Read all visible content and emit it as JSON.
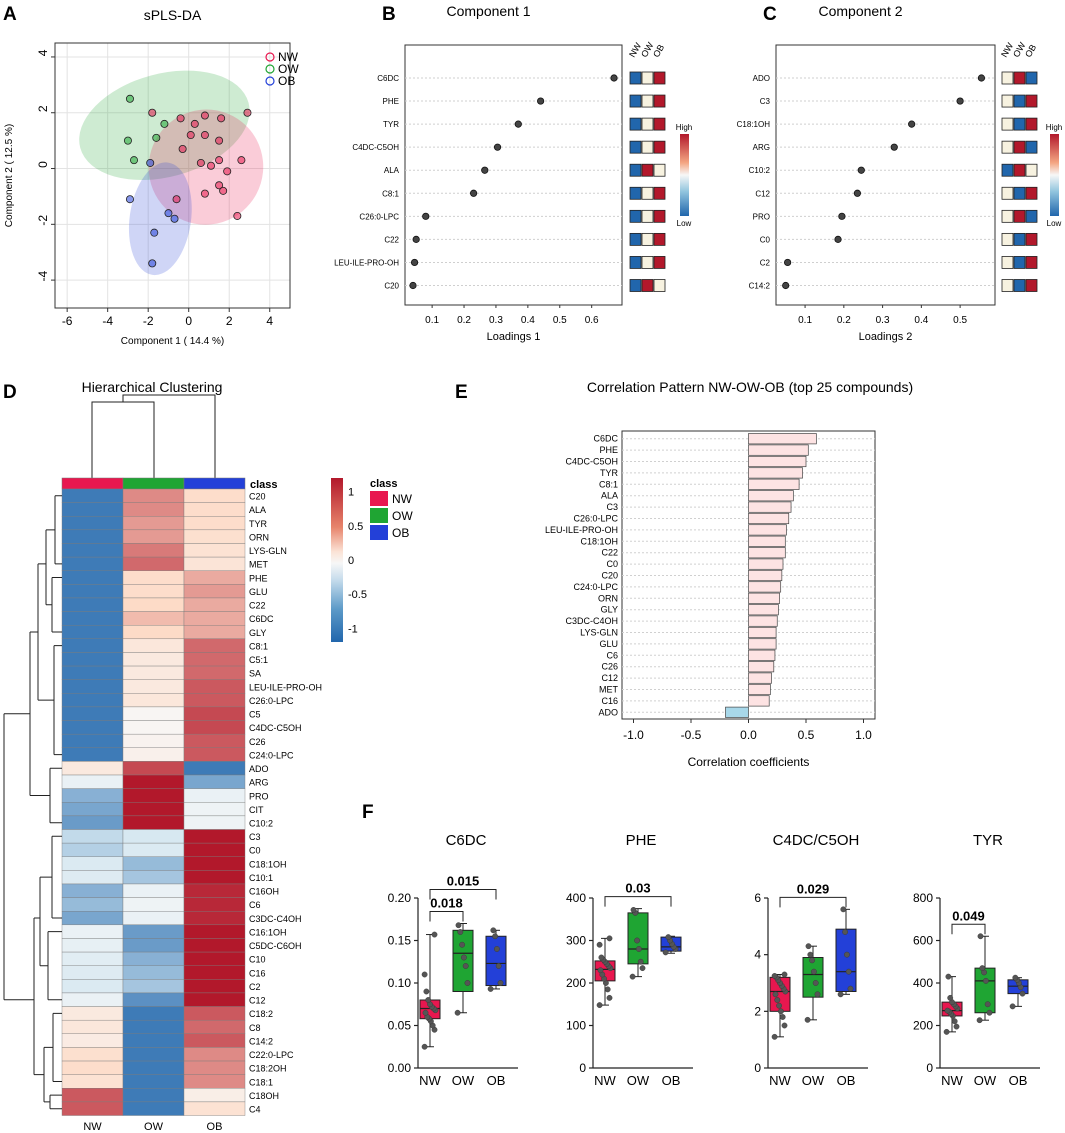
{
  "panel_letters": {
    "A": "A",
    "B": "B",
    "C": "C",
    "D": "D",
    "E": "E",
    "F": "F"
  },
  "colors": {
    "NW": "#e8174f",
    "OW": "#1fa533",
    "OB": "#2340d8",
    "high": "#b2182b",
    "low": "#2166ac",
    "mid": "#f7f2e0"
  },
  "chart_data": [
    {
      "id": "A",
      "type": "scatter",
      "title": "sPLS-DA",
      "xlabel": "Component 1 ( 14.4 %)",
      "ylabel": "Component 2 ( 12.5 %)",
      "xlim": [
        -6.6,
        5
      ],
      "ylim": [
        -5,
        4.5
      ],
      "xticks": [
        -6,
        -4,
        -2,
        0,
        2,
        4
      ],
      "yticks": [
        -4,
        -2,
        0,
        2,
        4
      ],
      "legend": [
        "NW",
        "OW",
        "OB"
      ],
      "series": [
        {
          "name": "NW",
          "points": [
            [
              -1.8,
              2
            ],
            [
              -0.4,
              1.8
            ],
            [
              0.3,
              1.6
            ],
            [
              0.8,
              1.9
            ],
            [
              1.6,
              1.8
            ],
            [
              2.9,
              2
            ],
            [
              0.1,
              1.2
            ],
            [
              0.8,
              1.2
            ],
            [
              1.5,
              1
            ],
            [
              -0.3,
              0.7
            ],
            [
              0.6,
              0.2
            ],
            [
              1.1,
              0.1
            ],
            [
              1.5,
              0.3
            ],
            [
              1.9,
              -0.1
            ],
            [
              2.6,
              0.3
            ],
            [
              1.5,
              -0.6
            ],
            [
              1.7,
              -0.8
            ],
            [
              0.8,
              -0.9
            ],
            [
              -0.6,
              -1.1
            ],
            [
              2.4,
              -1.7
            ]
          ]
        },
        {
          "name": "OW",
          "points": [
            [
              -2.9,
              2.5
            ],
            [
              -1.2,
              1.6
            ],
            [
              -3,
              1
            ],
            [
              -1.6,
              1.1
            ],
            [
              -2.7,
              0.3
            ]
          ]
        },
        {
          "name": "OB",
          "points": [
            [
              -1.9,
              0.2
            ],
            [
              -2.9,
              -1.1
            ],
            [
              -1,
              -1.6
            ],
            [
              -0.7,
              -1.8
            ],
            [
              -1.7,
              -2.3
            ],
            [
              -1.8,
              -3.4
            ]
          ]
        }
      ],
      "ellipses": [
        {
          "name": "OW",
          "cx": -1.2,
          "cy": 1.55,
          "rx": 4.3,
          "ry": 1.85,
          "angle": -15
        },
        {
          "name": "NW",
          "cx": 0.85,
          "cy": 0.05,
          "rx": 2.85,
          "ry": 2.05,
          "angle": -62
        },
        {
          "name": "OB",
          "cx": -1.4,
          "cy": -1.8,
          "rx": 2.8,
          "ry": 1.1,
          "angle": -82
        }
      ]
    },
    {
      "id": "B",
      "type": "scatter",
      "title": "Component 1",
      "xlabel": "Loadings 1",
      "xlim": [
        0.015,
        0.695
      ],
      "xticks": [
        0.1,
        0.2,
        0.3,
        0.4,
        0.5,
        0.6
      ],
      "labels": [
        "C6DC",
        "PHE",
        "TYR",
        "C4DC-C5OH",
        "ALA",
        "C8:1",
        "C26:0-LPC",
        "C22",
        "LEU-ILE-PRO-OH",
        "C20"
      ],
      "values": [
        0.67,
        0.44,
        0.37,
        0.305,
        0.265,
        0.23,
        0.08,
        0.05,
        0.045,
        0.04
      ],
      "group_header": [
        "NW",
        "OW",
        "OB"
      ],
      "groups": [
        [
          "L",
          "M",
          "H"
        ],
        [
          "L",
          "M",
          "H"
        ],
        [
          "L",
          "M",
          "H"
        ],
        [
          "L",
          "M",
          "H"
        ],
        [
          "L",
          "H",
          "M"
        ],
        [
          "L",
          "M",
          "H"
        ],
        [
          "L",
          "M",
          "H"
        ],
        [
          "L",
          "M",
          "H"
        ],
        [
          "L",
          "M",
          "H"
        ],
        [
          "L",
          "H",
          "M"
        ]
      ],
      "scale": {
        "high": "High",
        "low": "Low"
      }
    },
    {
      "id": "C",
      "type": "scatter",
      "title": "Component 2",
      "xlabel": "Loadings 2",
      "xlim": [
        0.025,
        0.59
      ],
      "xticks": [
        0.1,
        0.2,
        0.3,
        0.4,
        0.5
      ],
      "labels": [
        "ADO",
        "C3",
        "C18:1OH",
        "ARG",
        "C10:2",
        "C12",
        "PRO",
        "C0",
        "C2",
        "C14:2"
      ],
      "values": [
        0.555,
        0.5,
        0.375,
        0.33,
        0.245,
        0.235,
        0.195,
        0.185,
        0.055,
        0.05
      ],
      "group_header": [
        "NW",
        "OW",
        "OB"
      ],
      "groups": [
        [
          "M",
          "H",
          "L"
        ],
        [
          "M",
          "L",
          "H"
        ],
        [
          "M",
          "L",
          "H"
        ],
        [
          "M",
          "H",
          "L"
        ],
        [
          "L",
          "H",
          "M"
        ],
        [
          "M",
          "L",
          "H"
        ],
        [
          "M",
          "H",
          "L"
        ],
        [
          "M",
          "L",
          "H"
        ],
        [
          "M",
          "L",
          "H"
        ],
        [
          "M",
          "L",
          "H"
        ]
      ],
      "scale": {
        "high": "High",
        "low": "Low"
      }
    },
    {
      "id": "D",
      "type": "heatmap",
      "title": "Hierarchical Clustering",
      "columns": [
        "NW",
        "OW",
        "OB"
      ],
      "class_label": "class",
      "rows": [
        "C20",
        "ALA",
        "TYR",
        "ORN",
        "LYS-GLN",
        "MET",
        "PHE",
        "GLU",
        "C22",
        "C6DC",
        "GLY",
        "C8:1",
        "C5:1",
        "SA",
        "LEU-ILE-PRO-OH",
        "C26:0-LPC",
        "C5",
        "C4DC-C5OH",
        "C26",
        "C24:0-LPC",
        "ADO",
        "ARG",
        "PRO",
        "CIT",
        "C10:2",
        "C3",
        "C0",
        "C18:1OH",
        "C10:1",
        "C16OH",
        "C6",
        "C3DC-C4OH",
        "C16:1OH",
        "C5DC-C6OH",
        "C10",
        "C16",
        "C2",
        "C12",
        "C18:2",
        "C8",
        "C14:2",
        "C22:0-LPC",
        "C18:2OH",
        "C18:1",
        "C18OH",
        "C4"
      ],
      "values": [
        [
          -1.1,
          0.85,
          0.55
        ],
        [
          -1.1,
          0.85,
          0.55
        ],
        [
          -1.1,
          0.8,
          0.55
        ],
        [
          -1.1,
          0.8,
          0.5
        ],
        [
          -1.1,
          0.9,
          0.45
        ],
        [
          -1.1,
          0.95,
          0.4
        ],
        [
          -1.1,
          0.55,
          0.75
        ],
        [
          -1.1,
          0.55,
          0.8
        ],
        [
          -1.1,
          0.6,
          0.75
        ],
        [
          -1.1,
          0.7,
          0.75
        ],
        [
          -1.1,
          0.6,
          0.75
        ],
        [
          -1.1,
          0.35,
          0.95
        ],
        [
          -1.1,
          0.3,
          0.95
        ],
        [
          -1.1,
          0.3,
          0.95
        ],
        [
          -1.1,
          0.3,
          1.0
        ],
        [
          -1.1,
          0.35,
          1.0
        ],
        [
          -1.1,
          0.05,
          1.05
        ],
        [
          -1.1,
          0.05,
          1.05
        ],
        [
          -1.1,
          0.1,
          1.0
        ],
        [
          -1.1,
          0.15,
          1.0
        ],
        [
          0.3,
          1.05,
          -1.1
        ],
        [
          -0.2,
          1.2,
          -0.9
        ],
        [
          -0.85,
          1.2,
          -0.2
        ],
        [
          -0.9,
          1.2,
          -0.15
        ],
        [
          -0.95,
          1.2,
          -0.15
        ],
        [
          -0.65,
          -0.5,
          1.2
        ],
        [
          -0.7,
          -0.45,
          1.2
        ],
        [
          -0.45,
          -0.8,
          1.2
        ],
        [
          -0.4,
          -0.75,
          1.2
        ],
        [
          -0.85,
          -0.2,
          1.15
        ],
        [
          -0.8,
          -0.15,
          1.15
        ],
        [
          -0.9,
          -0.2,
          1.15
        ],
        [
          -0.2,
          -0.95,
          1.2
        ],
        [
          -0.25,
          -0.95,
          1.2
        ],
        [
          -0.35,
          -0.85,
          1.2
        ],
        [
          -0.4,
          -0.8,
          1.2
        ],
        [
          -0.45,
          -0.75,
          1.25
        ],
        [
          -0.2,
          -1.0,
          1.25
        ],
        [
          0.3,
          -1.1,
          1.0
        ],
        [
          0.35,
          -1.1,
          0.95
        ],
        [
          0.25,
          -1.1,
          1.0
        ],
        [
          0.5,
          -1.1,
          0.85
        ],
        [
          0.55,
          -1.1,
          0.85
        ],
        [
          0.45,
          -1.1,
          0.85
        ],
        [
          1.0,
          -1.1,
          0.2
        ],
        [
          1.0,
          -1.1,
          0.45
        ]
      ],
      "scale_ticks": [
        1,
        0.5,
        0,
        -0.5,
        -1
      ],
      "scale_labels": [
        "1",
        "0.5",
        "0",
        "-0.5",
        "-1"
      ],
      "legend": [
        "NW",
        "OW",
        "OB"
      ]
    },
    {
      "id": "E",
      "type": "bar",
      "title": "Correlation Pattern NW-OW-OB (top 25 compounds)",
      "xlabel": "Correlation coefficients",
      "xlim": [
        -1.1,
        1.1
      ],
      "xticks": [
        -1,
        -0.5,
        0,
        0.5,
        1
      ],
      "xtick_labels": [
        "-1.0",
        "-0.5",
        "0.0",
        "0.5",
        "1.0"
      ],
      "categories": [
        "C6DC",
        "PHE",
        "C4DC-C5OH",
        "TYR",
        "C8:1",
        "ALA",
        "C3",
        "C26:0-LPC",
        "LEU-ILE-PRO-OH",
        "C18:1OH",
        "C22",
        "C0",
        "C20",
        "C24:0-LPC",
        "ORN",
        "GLY",
        "C3DC-C4OH",
        "LYS-GLN",
        "GLU",
        "C6",
        "C26",
        "C12",
        "MET",
        "C16",
        "ADO"
      ],
      "values": [
        0.59,
        0.52,
        0.5,
        0.47,
        0.44,
        0.39,
        0.37,
        0.35,
        0.33,
        0.32,
        0.32,
        0.3,
        0.29,
        0.28,
        0.27,
        0.26,
        0.25,
        0.24,
        0.24,
        0.23,
        0.22,
        0.2,
        0.19,
        0.18,
        -0.2
      ]
    },
    {
      "id": "F",
      "type": "box",
      "groups": [
        "NW",
        "OW",
        "OB"
      ],
      "panels": [
        {
          "title": "C6DC",
          "ylim": [
            0,
            0.2
          ],
          "yticks": [
            0,
            0.05,
            0.1,
            0.15,
            0.2
          ],
          "ytick_labels": [
            "0.00",
            "0.05",
            "0.10",
            "0.15",
            "0.20"
          ],
          "boxes": [
            {
              "q1": 0.058,
              "median": 0.07,
              "q3": 0.08,
              "min": 0.025,
              "max": 0.157,
              "points": [
                0.025,
                0.045,
                0.05,
                0.055,
                0.058,
                0.06,
                0.065,
                0.068,
                0.07,
                0.072,
                0.075,
                0.08,
                0.09,
                0.11,
                0.157
              ]
            },
            {
              "q1": 0.09,
              "median": 0.135,
              "q3": 0.162,
              "min": 0.065,
              "max": 0.17,
              "points": [
                0.065,
                0.1,
                0.12,
                0.13,
                0.145,
                0.16,
                0.168
              ]
            },
            {
              "q1": 0.097,
              "median": 0.123,
              "q3": 0.155,
              "min": 0.093,
              "max": 0.162,
              "points": [
                0.093,
                0.1,
                0.12,
                0.14,
                0.155,
                0.162
              ]
            }
          ],
          "brackets": [
            {
              "from": 0,
              "to": 1,
              "label": "0.018",
              "level": 0
            },
            {
              "from": 0,
              "to": 2,
              "label": "0.015",
              "level": 1
            }
          ]
        },
        {
          "title": "PHE",
          "ylim": [
            0,
            400
          ],
          "yticks": [
            0,
            100,
            200,
            300,
            400
          ],
          "ytick_labels": [
            "0",
            "100",
            "200",
            "300",
            "400"
          ],
          "boxes": [
            {
              "q1": 205,
              "median": 232,
              "q3": 252,
              "min": 148,
              "max": 305,
              "points": [
                148,
                165,
                185,
                200,
                210,
                220,
                230,
                235,
                240,
                245,
                250,
                255,
                260,
                290,
                305
              ]
            },
            {
              "q1": 245,
              "median": 280,
              "q3": 365,
              "min": 215,
              "max": 375,
              "points": [
                215,
                235,
                250,
                280,
                300,
                365,
                372
              ]
            },
            {
              "q1": 275,
              "median": 285,
              "q3": 308,
              "min": 270,
              "max": 310,
              "points": [
                272,
                280,
                285,
                292,
                300,
                308
              ]
            }
          ],
          "brackets": [
            {
              "from": 0,
              "to": 2,
              "label": "0.03",
              "level": 0
            }
          ]
        },
        {
          "title": "C4DC/C5OH",
          "ylim": [
            0,
            6
          ],
          "yticks": [
            0,
            2,
            4,
            6
          ],
          "ytick_labels": [
            "0",
            "2",
            "4",
            "6"
          ],
          "boxes": [
            {
              "q1": 2.0,
              "median": 2.7,
              "q3": 3.2,
              "min": 1.1,
              "max": 3.3,
              "points": [
                1.1,
                1.5,
                1.8,
                2.0,
                2.2,
                2.4,
                2.6,
                2.7,
                2.8,
                2.9,
                3.0,
                3.1,
                3.2,
                3.25,
                3.3
              ]
            },
            {
              "q1": 2.5,
              "median": 3.3,
              "q3": 3.9,
              "min": 1.7,
              "max": 4.3,
              "points": [
                1.7,
                2.6,
                3.0,
                3.4,
                3.8,
                4.0,
                4.3
              ]
            },
            {
              "q1": 2.7,
              "median": 3.4,
              "q3": 4.9,
              "min": 2.6,
              "max": 5.6,
              "points": [
                2.6,
                2.8,
                3.4,
                4.0,
                4.8,
                5.6
              ]
            }
          ],
          "brackets": [
            {
              "from": 0,
              "to": 2,
              "label": "0.029",
              "level": 0
            }
          ]
        },
        {
          "title": "TYR",
          "ylim": [
            0,
            800
          ],
          "yticks": [
            0,
            200,
            400,
            600,
            800
          ],
          "ytick_labels": [
            "0",
            "200",
            "400",
            "600",
            "800"
          ],
          "boxes": [
            {
              "q1": 245,
              "median": 270,
              "q3": 310,
              "min": 170,
              "max": 430,
              "points": [
                170,
                195,
                220,
                245,
                255,
                265,
                270,
                280,
                290,
                300,
                310,
                330,
                430
              ]
            },
            {
              "q1": 260,
              "median": 410,
              "q3": 470,
              "min": 225,
              "max": 620,
              "points": [
                225,
                260,
                300,
                410,
                450,
                470,
                620
              ]
            },
            {
              "q1": 350,
              "median": 385,
              "q3": 415,
              "min": 290,
              "max": 425,
              "points": [
                290,
                350,
                380,
                400,
                415,
                425
              ]
            }
          ],
          "brackets": [
            {
              "from": 0,
              "to": 1,
              "label": "0.049",
              "level": 0
            }
          ]
        }
      ]
    }
  ]
}
